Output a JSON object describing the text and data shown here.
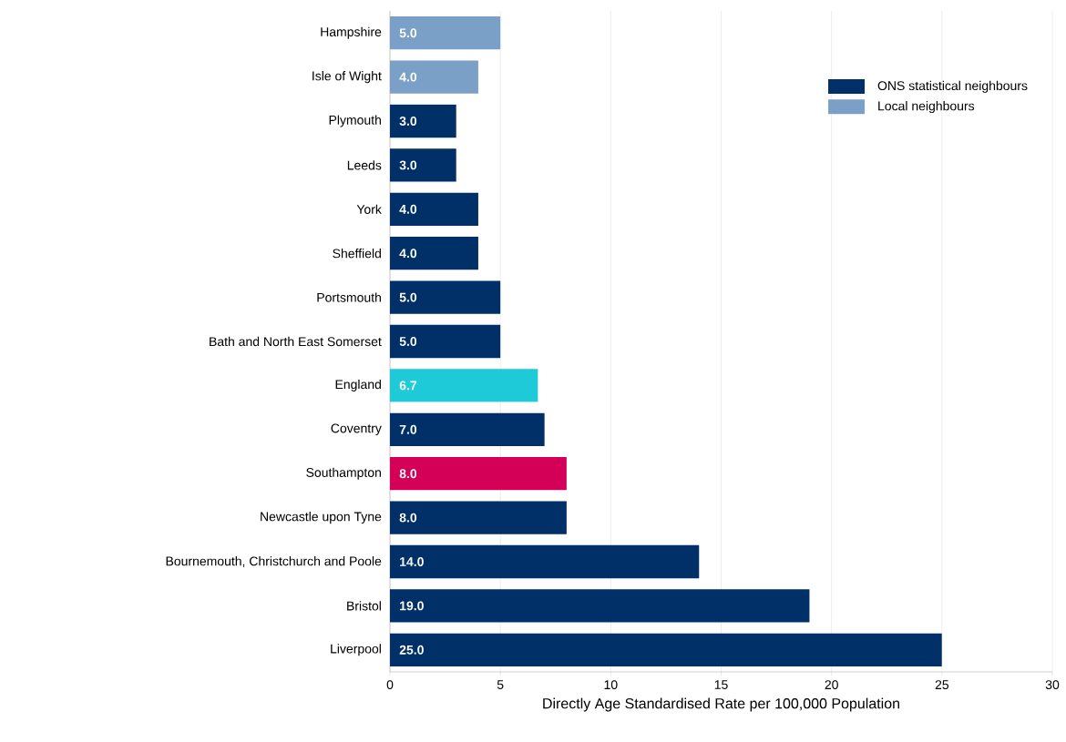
{
  "chart_data": {
    "type": "bar",
    "orientation": "horizontal",
    "xlabel": "Directly Age Standardised Rate per 100,000 Population",
    "categories": [
      "Hampshire",
      "Isle of Wight",
      "Plymouth",
      "Leeds",
      "York",
      "Sheffield",
      "Portsmouth",
      "Bath and North East Somerset",
      "England",
      "Coventry",
      "Southampton",
      "Newcastle upon Tyne",
      "Bournemouth, Christchurch and Poole",
      "Bristol",
      "Liverpool"
    ],
    "series": [
      {
        "name": "ONS statistical neighbours",
        "color": "#003067",
        "values": [
          null,
          null,
          3,
          3,
          4,
          4,
          5,
          5,
          null,
          7,
          null,
          8,
          14,
          19,
          25
        ],
        "value_labels": [
          null,
          null,
          "3.0",
          "3.0",
          "4.0",
          "4.0",
          "5.0",
          "5.0",
          null,
          "7.0",
          null,
          "8.0",
          "14.0",
          "19.0",
          "25.0"
        ]
      },
      {
        "name": "Local neighbours",
        "color": "#7ba0c8",
        "values": [
          5,
          4,
          null,
          null,
          null,
          null,
          null,
          null,
          null,
          null,
          null,
          null,
          null,
          null,
          null
        ],
        "value_labels": [
          "5.0",
          "4.0",
          null,
          null,
          null,
          null,
          null,
          null,
          null,
          null,
          null,
          null,
          null,
          null,
          null
        ]
      },
      {
        "color": "#1ecad8",
        "values": [
          null,
          null,
          null,
          null,
          null,
          null,
          null,
          null,
          6.7,
          null,
          null,
          null,
          null,
          null,
          null
        ],
        "value_labels": [
          null,
          null,
          null,
          null,
          null,
          null,
          null,
          null,
          "6.7",
          null,
          null,
          null,
          null,
          null,
          null
        ]
      },
      {
        "color": "#d40057",
        "values": [
          null,
          null,
          null,
          null,
          null,
          null,
          null,
          null,
          null,
          null,
          8,
          null,
          null,
          null,
          null
        ],
        "value_labels": [
          null,
          null,
          null,
          null,
          null,
          null,
          null,
          null,
          null,
          null,
          "8.0",
          null,
          null,
          null,
          null
        ]
      }
    ],
    "xlim": [
      0,
      30
    ],
    "xticks": [
      0,
      5,
      10,
      15,
      20,
      25,
      30
    ],
    "grid": "x",
    "legend": "top right"
  }
}
